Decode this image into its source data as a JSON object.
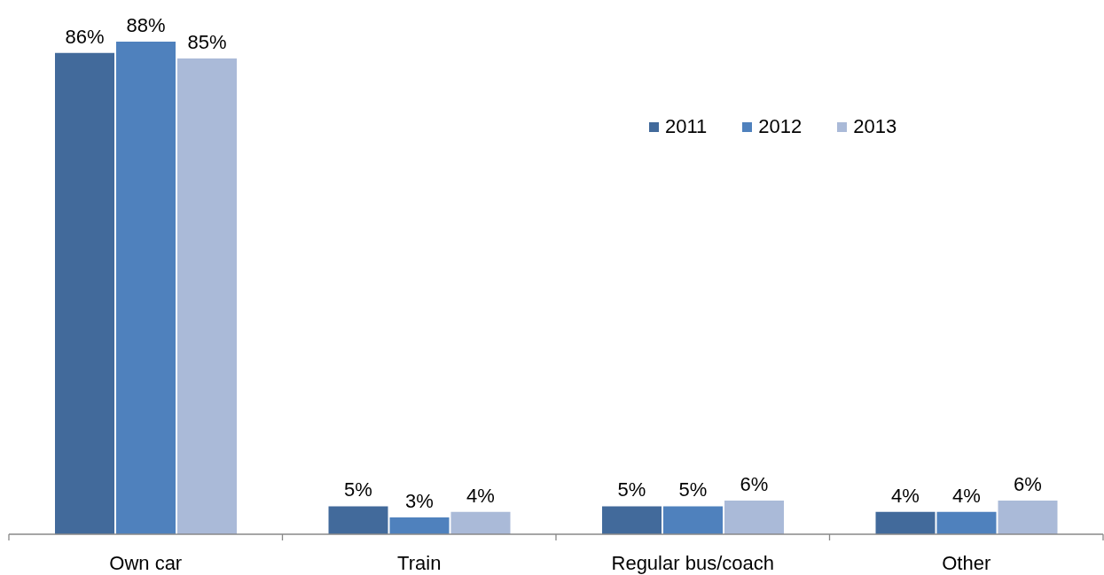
{
  "chart_data": {
    "type": "bar",
    "categories": [
      "Own car",
      "Train",
      "Regular bus/coach",
      "Other"
    ],
    "series": [
      {
        "name": "2011",
        "color": "#426a9b",
        "values": [
          86,
          5,
          5,
          4
        ],
        "value_labels": [
          "86%",
          "5%",
          "5%",
          "4%"
        ]
      },
      {
        "name": "2012",
        "color": "#4f81bd",
        "values": [
          88,
          3,
          5,
          4
        ],
        "value_labels": [
          "88%",
          "3%",
          "5%",
          "4%"
        ]
      },
      {
        "name": "2013",
        "color": "#aabad8",
        "values": [
          85,
          4,
          6,
          6
        ],
        "value_labels": [
          "85%",
          "4%",
          "6%",
          "6%"
        ]
      }
    ],
    "tick_labels": "x",
    "legend": "top right"
  }
}
